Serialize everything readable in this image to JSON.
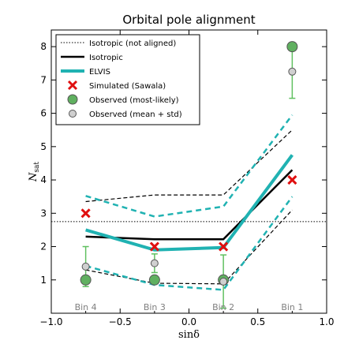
{
  "chart_data": {
    "type": "line",
    "title": "Orbital pole alignment",
    "xlabel": "sinδ",
    "ylabel_main": "N",
    "ylabel_sub": "sat",
    "xlim": [
      -1.0,
      1.0
    ],
    "ylim": [
      0,
      8.5
    ],
    "xticks": [
      -1.0,
      -0.5,
      0.0,
      0.5,
      1.0
    ],
    "xtick_labels": [
      "−1.0",
      "−0.5",
      "0.0",
      "0.5",
      "1.0"
    ],
    "yticks": [
      1,
      2,
      3,
      4,
      5,
      6,
      7,
      8
    ],
    "ytick_labels": [
      "1",
      "2",
      "3",
      "4",
      "5",
      "6",
      "7",
      "8"
    ],
    "bin_labels": [
      {
        "x": -0.75,
        "label": "Bin 4"
      },
      {
        "x": -0.25,
        "label": "Bin 3"
      },
      {
        "x": 0.25,
        "label": "Bin 2"
      },
      {
        "x": 0.75,
        "label": "Bin 1"
      }
    ],
    "bin_x": [
      -0.75,
      -0.25,
      0.25,
      0.75
    ],
    "isotropic_not_aligned": 2.75,
    "isotropic": [
      2.3,
      2.22,
      2.22,
      4.3
    ],
    "isotropic_upper": [
      3.35,
      3.55,
      3.55,
      5.5
    ],
    "isotropic_lower": [
      1.3,
      0.9,
      0.88,
      3.1
    ],
    "elvis": [
      2.5,
      1.9,
      1.97,
      4.75
    ],
    "elvis_upper": [
      3.52,
      2.9,
      3.2,
      5.95
    ],
    "elvis_lower": [
      1.42,
      0.85,
      0.7,
      3.5
    ],
    "simulated_sawala": [
      3.0,
      2.0,
      2.0,
      4.0
    ],
    "observed_most_likely": [
      1.0,
      1.0,
      1.0,
      8.0
    ],
    "observed_mean": [
      1.4,
      1.5,
      0.95,
      7.25
    ],
    "observed_std": [
      0.6,
      0.28,
      0.8,
      0.8
    ],
    "colors": {
      "isotropic": "#000000",
      "elvis": "#20b2b2",
      "sawala": "#e01010",
      "observed_most_likely_fill": "#60b060",
      "observed_mean_fill": "#d0d0d0",
      "error_bar": "#60c060"
    },
    "legend": {
      "placement": "top-left",
      "entries": [
        {
          "label": "Isotropic (not aligned)",
          "symbol": "dotted-line"
        },
        {
          "label": "Isotropic",
          "symbol": "black-line"
        },
        {
          "label": "ELVIS",
          "symbol": "cyan-line"
        },
        {
          "label": "Simulated (Sawala)",
          "symbol": "red-x"
        },
        {
          "label": "Observed (most-likely)",
          "symbol": "green-circle"
        },
        {
          "label": "Observed (mean + std)",
          "symbol": "grey-circle"
        }
      ]
    }
  }
}
